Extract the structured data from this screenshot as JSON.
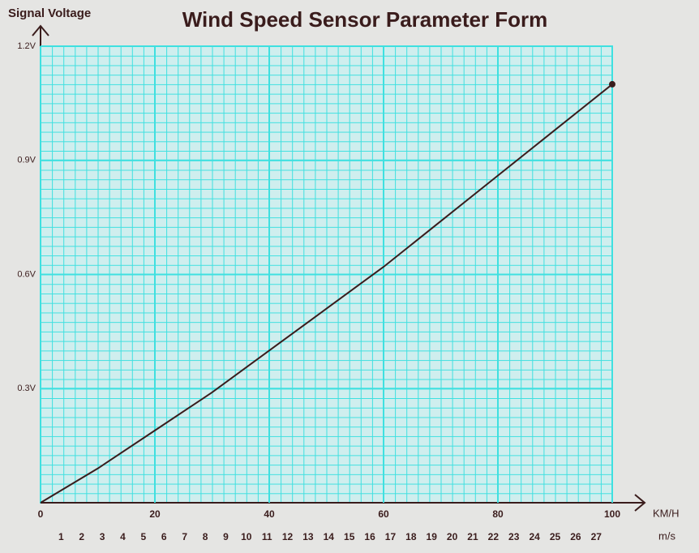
{
  "chart_data": {
    "type": "line",
    "title": "Wind Speed Sensor Parameter Form",
    "ylabel": "Signal Voltage",
    "xlabel": "KM/H",
    "x2label": "m/s",
    "x": [
      0,
      10,
      20,
      30,
      40,
      50,
      60,
      70,
      80,
      90,
      100
    ],
    "values": [
      0,
      0.09,
      0.19,
      0.29,
      0.4,
      0.51,
      0.62,
      0.74,
      0.86,
      0.98,
      1.1
    ],
    "color": "#3a1c1c",
    "xlim": [
      0,
      100
    ],
    "ylim": [
      0,
      1.2
    ],
    "xticks": [
      0,
      20,
      40,
      60,
      80,
      100
    ],
    "yticks": [
      {
        "value": 0.3,
        "label": "0.3V"
      },
      {
        "value": 0.6,
        "label": "0.6V"
      },
      {
        "value": 0.9,
        "label": "0.9V"
      },
      {
        "value": 1.2,
        "label": "1.2V"
      }
    ],
    "x2ticks": [
      {
        "value": 3.6,
        "label": "1"
      },
      {
        "value": 7.2,
        "label": "2"
      },
      {
        "value": 10.8,
        "label": "3"
      },
      {
        "value": 14.4,
        "label": "4"
      },
      {
        "value": 18,
        "label": "5"
      },
      {
        "value": 21.6,
        "label": "6"
      },
      {
        "value": 25.2,
        "label": "7"
      },
      {
        "value": 28.8,
        "label": "8"
      },
      {
        "value": 32.4,
        "label": "9"
      },
      {
        "value": 36,
        "label": "10"
      },
      {
        "value": 39.6,
        "label": "11"
      },
      {
        "value": 43.2,
        "label": "12"
      },
      {
        "value": 46.8,
        "label": "13"
      },
      {
        "value": 50.4,
        "label": "14"
      },
      {
        "value": 54,
        "label": "15"
      },
      {
        "value": 57.6,
        "label": "16"
      },
      {
        "value": 61.2,
        "label": "17"
      },
      {
        "value": 64.8,
        "label": "18"
      },
      {
        "value": 68.4,
        "label": "19"
      },
      {
        "value": 72,
        "label": "20"
      },
      {
        "value": 75.6,
        "label": "21"
      },
      {
        "value": 79.2,
        "label": "22"
      },
      {
        "value": 82.8,
        "label": "23"
      },
      {
        "value": 86.4,
        "label": "24"
      },
      {
        "value": 90,
        "label": "25"
      },
      {
        "value": 93.6,
        "label": "26"
      },
      {
        "value": 97.2,
        "label": "27"
      }
    ],
    "grid": true,
    "end_marker": true
  }
}
